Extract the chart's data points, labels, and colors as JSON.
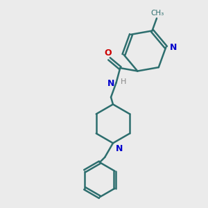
{
  "bg_color": "#ebebeb",
  "bond_color": "#2d6e6e",
  "N_color": "#0000cc",
  "O_color": "#cc0000",
  "line_width": 1.8,
  "figsize": [
    3.0,
    3.0
  ],
  "dpi": 100,
  "xlim": [
    0,
    10
  ],
  "ylim": [
    0,
    10
  ]
}
